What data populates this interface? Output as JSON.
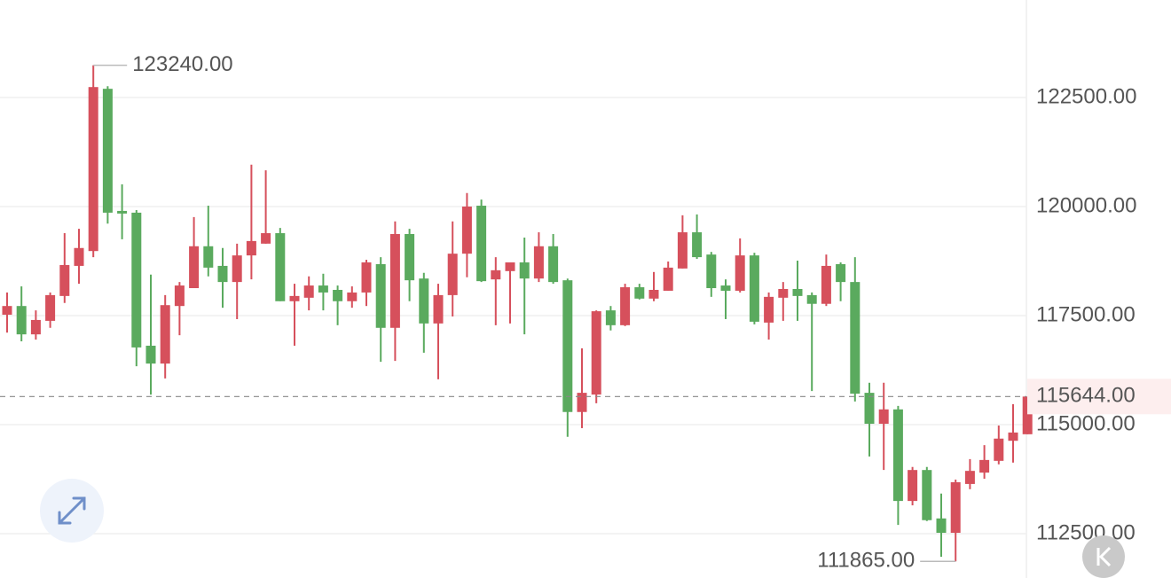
{
  "chart_data": {
    "type": "candlestick",
    "up_color": "#d6505c",
    "down_color": "#5aaa5e",
    "ylim": [
      111484,
      124736
    ],
    "yticks": [
      {
        "value": 112500,
        "label": "112500.00"
      },
      {
        "value": 115000,
        "label": "115000.00"
      },
      {
        "value": 117500,
        "label": "117500.00"
      },
      {
        "value": 120000,
        "label": "120000.00"
      },
      {
        "value": 122500,
        "label": "122500.00"
      }
    ],
    "grid": true,
    "high_label": {
      "value": 123240,
      "label": "123240.00"
    },
    "low_label": {
      "value": 111865,
      "label": "111865.00"
    },
    "last_price": {
      "value": 115644,
      "label": "115644.00"
    },
    "open": [
      117520,
      117720,
      117070,
      117380,
      117950,
      118640,
      118980,
      122700,
      119900,
      119860,
      116810,
      116400,
      117720,
      118130,
      119090,
      118640,
      118270,
      118880,
      119150,
      119390,
      117830,
      117910,
      118190,
      118090,
      117830,
      118030,
      118680,
      117220,
      119370,
      118350,
      117320,
      117970,
      118920,
      120020,
      118330,
      118520,
      118720,
      118350,
      119090,
      118310,
      115290,
      115690,
      117620,
      117280,
      118150,
      117890,
      118070,
      118580,
      119410,
      118900,
      118190,
      118070,
      118880,
      117340,
      117910,
      118110,
      117970,
      117770,
      118680,
      118270,
      115730,
      115020,
      115350,
      113250,
      113960,
      112850,
      112520,
      113640,
      113900,
      114170,
      114630,
      114780
    ],
    "high": [
      118030,
      118170,
      117620,
      118030,
      119390,
      119490,
      123240,
      122760,
      120510,
      119920,
      118440,
      117970,
      118270,
      119760,
      120020,
      119050,
      119150,
      120960,
      120830,
      119510,
      118230,
      118400,
      118460,
      118190,
      118170,
      118780,
      118840,
      119660,
      119490,
      118480,
      118230,
      119660,
      120310,
      120160,
      118840,
      118720,
      119290,
      119410,
      119370,
      118350,
      116750,
      117620,
      117720,
      118230,
      118230,
      118500,
      118740,
      119800,
      119820,
      118960,
      118330,
      119270,
      118940,
      118030,
      118270,
      118760,
      118030,
      118900,
      118720,
      118840,
      115960,
      115960,
      115430,
      114030,
      114030,
      113420,
      113740,
      114210,
      114530,
      114980,
      115470,
      115644
    ],
    "low": [
      117110,
      116910,
      116950,
      117220,
      117790,
      118230,
      118840,
      119610,
      119250,
      116340,
      115690,
      116060,
      117050,
      118130,
      118400,
      117680,
      117420,
      118330,
      119150,
      117830,
      116810,
      117620,
      117620,
      117280,
      117680,
      117720,
      116440,
      116460,
      117830,
      116650,
      116040,
      117480,
      118380,
      118270,
      117280,
      117320,
      117070,
      118270,
      118230,
      114720,
      114920,
      115490,
      117160,
      117260,
      117870,
      117830,
      118070,
      118580,
      118800,
      117930,
      117420,
      118030,
      117300,
      116950,
      117380,
      117380,
      115770,
      117720,
      117830,
      115530,
      114270,
      113960,
      112700,
      113150,
      112790,
      111970,
      111865,
      113520,
      113760,
      114090,
      114130,
      114780
    ],
    "close": [
      117720,
      117070,
      117400,
      117970,
      118660,
      119050,
      122740,
      119860,
      119840,
      116770,
      116400,
      117740,
      118190,
      119090,
      118600,
      118270,
      118880,
      119210,
      119390,
      117830,
      117950,
      118190,
      118030,
      117830,
      118030,
      118720,
      117220,
      119370,
      118310,
      117320,
      117970,
      118920,
      120000,
      118290,
      118540,
      118720,
      118350,
      119090,
      118270,
      115290,
      115730,
      117600,
      117280,
      118150,
      117890,
      118090,
      118600,
      119410,
      118840,
      118130,
      118070,
      118880,
      117360,
      117930,
      118110,
      117950,
      117770,
      118640,
      118270,
      115710,
      115020,
      115350,
      113250,
      113960,
      112810,
      112520,
      113680,
      113940,
      114190,
      114680,
      114820,
      115644
    ]
  }
}
